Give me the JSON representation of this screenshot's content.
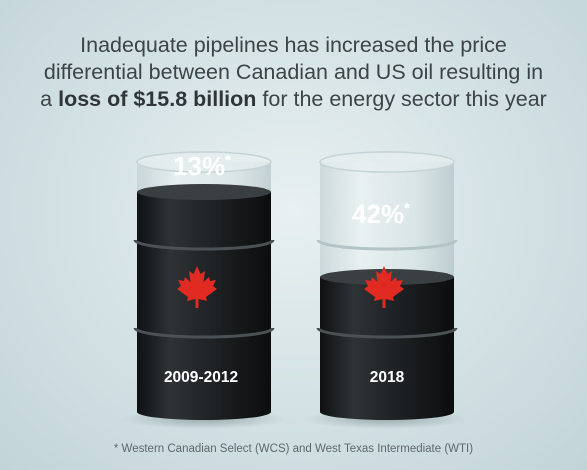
{
  "headline": {
    "line1": "Inadequate pipelines has increased the price",
    "line2": "differential between Canadian and US oil resulting in",
    "line3_prefix": "a ",
    "line3_bold": "loss of $15.8 billion",
    "line3_suffix": " for the energy sector this year"
  },
  "barrels": [
    {
      "percent": "13%",
      "asterisk": "*",
      "period": "2009-2012",
      "fill_fraction": 0.87
    },
    {
      "percent": "42%",
      "asterisk": "*",
      "period": "2018",
      "fill_fraction": 0.58
    }
  ],
  "footnote": "* Western Canadian Select (WCS) and West Texas Intermediate (WTI)",
  "colors": {
    "oil": "#1f2224",
    "leaf": "#e12b22",
    "text_dark": "#3d4447"
  },
  "icons": [
    "maple-leaf-icon"
  ]
}
